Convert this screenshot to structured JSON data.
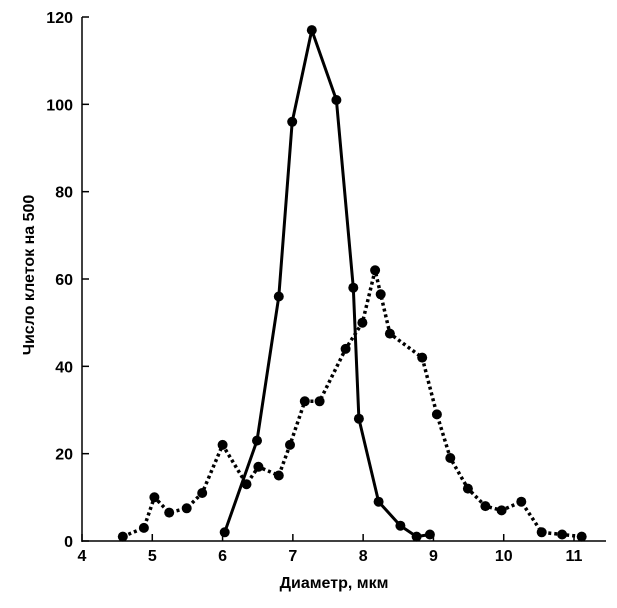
{
  "chart_data": {
    "type": "line",
    "xlabel": "Диаметр, мкм",
    "ylabel": "Число клеток на 500",
    "xlim": [
      4,
      11.4
    ],
    "ylim": [
      0,
      120
    ],
    "x_ticks": [
      "4",
      "5",
      "6",
      "7",
      "8",
      "9",
      "10",
      "11"
    ],
    "y_ticks": [
      "0",
      "20",
      "40",
      "60",
      "80",
      "100",
      "120"
    ],
    "grid": false,
    "legend": "none",
    "series": [
      {
        "style": "solid",
        "color": "#000000",
        "points": [
          [
            6.03,
            2
          ],
          [
            6.49,
            23
          ],
          [
            6.8,
            56
          ],
          [
            6.99,
            96
          ],
          [
            7.27,
            117
          ],
          [
            7.62,
            101
          ],
          [
            7.86,
            58
          ],
          [
            7.94,
            28
          ],
          [
            8.22,
            9
          ],
          [
            8.53,
            3.5
          ],
          [
            8.76,
            1
          ],
          [
            8.95,
            1.5
          ]
        ]
      },
      {
        "style": "dotted",
        "color": "#000000",
        "points": [
          [
            4.58,
            1
          ],
          [
            4.88,
            3
          ],
          [
            5.03,
            10
          ],
          [
            5.24,
            6.5
          ],
          [
            5.49,
            7.5
          ],
          [
            5.71,
            11
          ],
          [
            6.0,
            22
          ],
          [
            6.34,
            13
          ],
          [
            6.51,
            17
          ],
          [
            6.8,
            15
          ],
          [
            6.96,
            22
          ],
          [
            7.17,
            32
          ],
          [
            7.38,
            32
          ],
          [
            7.75,
            44
          ],
          [
            7.99,
            50
          ],
          [
            8.17,
            62
          ],
          [
            8.25,
            56.5
          ],
          [
            8.38,
            47.5
          ],
          [
            8.84,
            42
          ],
          [
            9.05,
            29
          ],
          [
            9.24,
            19
          ],
          [
            9.49,
            12
          ],
          [
            9.74,
            8
          ],
          [
            9.97,
            7
          ],
          [
            10.25,
            9
          ],
          [
            10.54,
            2
          ],
          [
            10.83,
            1.5
          ],
          [
            11.11,
            1
          ]
        ]
      }
    ]
  }
}
